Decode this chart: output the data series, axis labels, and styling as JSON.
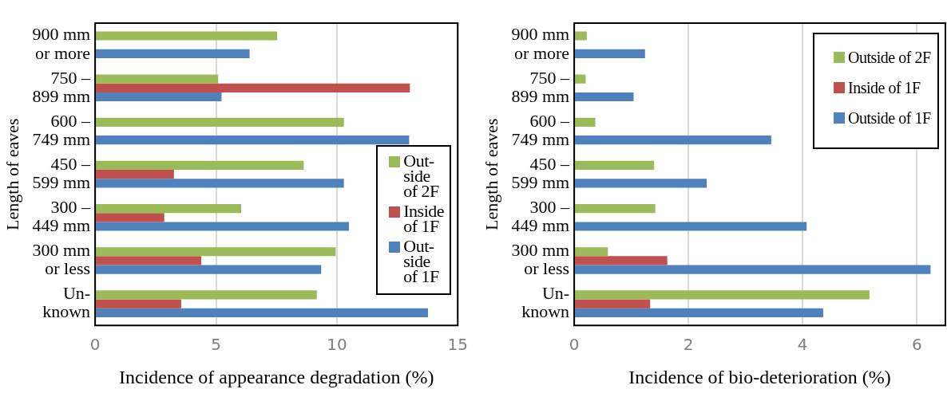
{
  "chart_data": [
    {
      "type": "bar",
      "orientation": "horizontal",
      "xlabel": "Incidence of appearance degradation (%)",
      "ylabel": "Length of eaves",
      "categories": [
        "900 mm\nor more",
        "750 –\n899 mm",
        "600 –\n749 mm",
        "450 –\n599 mm",
        "300 –\n449 mm",
        "300 mm\nor less",
        "Un-\nknown"
      ],
      "series": [
        {
          "name": "Out-side of 2F",
          "color": "#9bbb59",
          "values": [
            7.53,
            5.09,
            10.29,
            8.63,
            6.04,
            9.95,
            9.17
          ]
        },
        {
          "name": "Inside of 1F",
          "color": "#c0504d",
          "values": [
            null,
            13.02,
            null,
            3.26,
            2.86,
            4.39,
            3.56
          ]
        },
        {
          "name": "Out-side of 1F",
          "color": "#4f81bd",
          "values": [
            6.39,
            5.23,
            12.99,
            10.29,
            10.5,
            9.35,
            13.77
          ]
        }
      ],
      "xlim": [
        0,
        15
      ],
      "xticks": [
        0,
        5,
        10,
        15
      ],
      "grid": "x",
      "legend": "right"
    },
    {
      "type": "bar",
      "orientation": "horizontal",
      "xlabel": "Incidence of bio-deterioration (%)",
      "ylabel": "Length of eaves",
      "categories": [
        "900 mm\nor more",
        "750 –\n899 mm",
        "600 –\n749 mm",
        "450 –\n599 mm",
        "300 –\n449 mm",
        "300 mm\nor less",
        "Un-\nknown"
      ],
      "series": [
        {
          "name": "Outside of 2F",
          "color": "#9bbb59",
          "values": [
            0.22,
            0.2,
            0.37,
            1.4,
            1.42,
            0.59,
            5.17
          ]
        },
        {
          "name": "Inside of 1F",
          "color": "#c0504d",
          "values": [
            null,
            null,
            null,
            null,
            null,
            1.63,
            1.33
          ]
        },
        {
          "name": "Outside of 1F",
          "color": "#4f81bd",
          "values": [
            1.24,
            1.04,
            3.45,
            2.32,
            4.07,
            6.24,
            4.36
          ]
        }
      ],
      "xlim": [
        0,
        6.5
      ],
      "xticks": [
        0,
        2,
        4,
        6
      ],
      "grid": "x",
      "legend": "top right"
    }
  ]
}
